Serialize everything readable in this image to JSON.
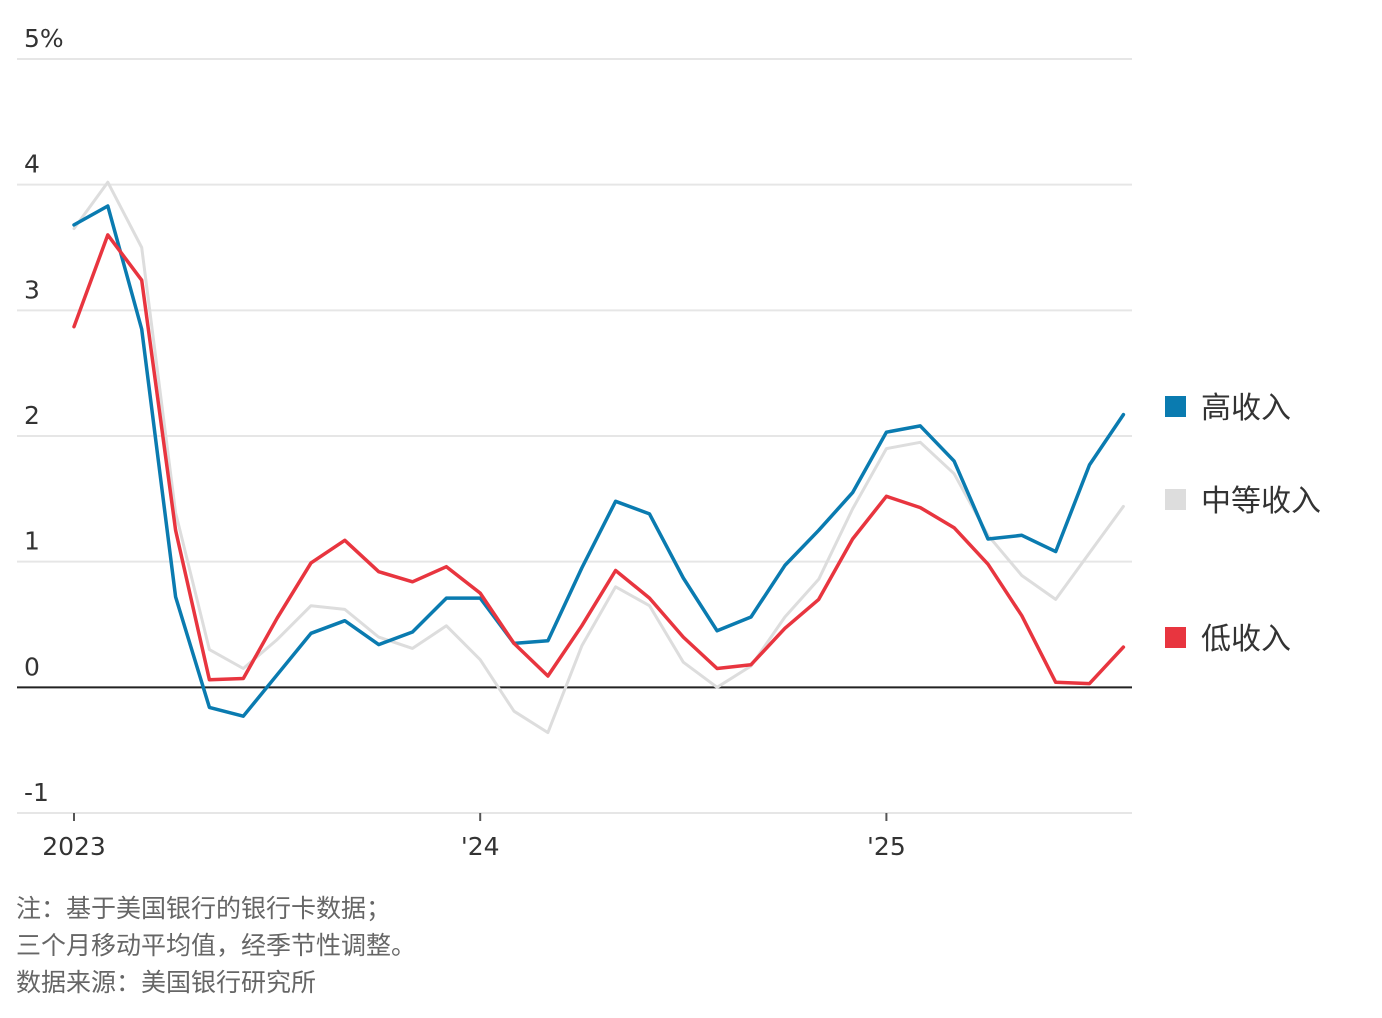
{
  "chart_data": {
    "type": "line",
    "title": "",
    "xlabel": "",
    "ylabel": "",
    "ylim": [
      -1,
      5
    ],
    "y_ticks": [
      {
        "value": 5,
        "label": "5%"
      },
      {
        "value": 4,
        "label": "4"
      },
      {
        "value": 3,
        "label": "3"
      },
      {
        "value": 2,
        "label": "2"
      },
      {
        "value": 1,
        "label": "1"
      },
      {
        "value": 0,
        "label": "0"
      },
      {
        "value": -1,
        "label": "-1"
      }
    ],
    "x_ticks": [
      {
        "value": "2023-01",
        "label": "2023"
      },
      {
        "value": "2024-01",
        "label": "'24"
      },
      {
        "value": "2025-01",
        "label": "'25"
      }
    ],
    "x": [
      "2023-01",
      "2023-02",
      "2023-03",
      "2023-04",
      "2023-05",
      "2023-06",
      "2023-07",
      "2023-08",
      "2023-09",
      "2023-10",
      "2023-11",
      "2023-12",
      "2024-01",
      "2024-02",
      "2024-03",
      "2024-04",
      "2024-05",
      "2024-06",
      "2024-07",
      "2024-08",
      "2024-09",
      "2024-10",
      "2024-11",
      "2024-12",
      "2025-01",
      "2025-02",
      "2025-03",
      "2025-04",
      "2025-05",
      "2025-06",
      "2025-07",
      "2025-08"
    ],
    "grid": true,
    "legend_position": "right",
    "series": [
      {
        "name": "高收入",
        "color": "#0a7bb0",
        "values": [
          3.68,
          3.83,
          2.85,
          0.72,
          -0.16,
          -0.23,
          0.1,
          0.43,
          0.53,
          0.34,
          0.44,
          0.71,
          0.71,
          0.35,
          0.37,
          0.95,
          1.48,
          1.38,
          0.87,
          0.45,
          0.56,
          0.97,
          1.25,
          1.55,
          2.03,
          2.08,
          1.8,
          1.18,
          1.21,
          1.08,
          1.77,
          2.17
        ]
      },
      {
        "name": "中等收入",
        "color": "#dddddd",
        "values": [
          3.65,
          4.02,
          3.5,
          1.39,
          0.3,
          0.15,
          0.38,
          0.65,
          0.62,
          0.4,
          0.31,
          0.49,
          0.22,
          -0.19,
          -0.36,
          0.33,
          0.8,
          0.65,
          0.2,
          0.0,
          0.17,
          0.56,
          0.86,
          1.42,
          1.9,
          1.95,
          1.7,
          1.21,
          0.89,
          0.7,
          1.07,
          1.44
        ]
      },
      {
        "name": "低收入",
        "color": "#e8353f",
        "values": [
          2.87,
          3.6,
          3.24,
          1.25,
          0.06,
          0.07,
          0.55,
          0.99,
          1.17,
          0.92,
          0.84,
          0.96,
          0.75,
          0.35,
          0.09,
          0.49,
          0.93,
          0.71,
          0.4,
          0.15,
          0.18,
          0.47,
          0.7,
          1.18,
          1.52,
          1.43,
          1.27,
          0.98,
          0.57,
          0.04,
          0.03,
          0.32
        ]
      }
    ]
  },
  "notes": {
    "line1": "注：基于美国银行的银行卡数据；",
    "line2": "三个月移动平均值，经季节性调整。",
    "line3": "数据来源：美国银行研究所"
  }
}
